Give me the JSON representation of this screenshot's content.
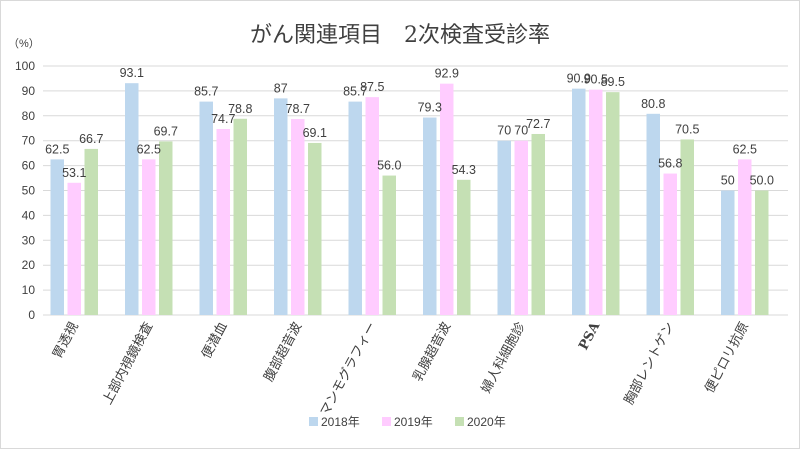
{
  "chart_data": {
    "type": "bar",
    "title": "がん関連項目　2次検査受診率",
    "ylabel": "（%）",
    "ylim": [
      0,
      100
    ],
    "yticks": [
      "0",
      "10",
      "20",
      "30",
      "40",
      "50",
      "60",
      "70",
      "80",
      "90",
      "100"
    ],
    "grid": true,
    "legend_position": "bottom",
    "categories": [
      "胃透視",
      "上部内視鏡検査",
      "便潜血",
      "腹部超音波",
      "マンモグラフィー",
      "乳腺超音波",
      "婦人科細胞診",
      "PSA",
      "胸部レントゲン",
      "便ピロリ抗原"
    ],
    "series": [
      {
        "name": "2018年",
        "color": "#bdd7ee",
        "values": [
          62.5,
          93.1,
          85.7,
          87,
          85.7,
          79.3,
          70,
          90.9,
          80.8,
          50
        ],
        "labels": [
          "62.5",
          "93.1",
          "85.7",
          "87",
          "85.7",
          "79.3",
          "70",
          "90.9",
          "80.8",
          "50"
        ]
      },
      {
        "name": "2019年",
        "color": "#ffccff",
        "values": [
          53.1,
          62.5,
          74.7,
          78.7,
          87.5,
          92.9,
          70,
          90.5,
          56.8,
          62.5
        ],
        "labels": [
          "53.1",
          "62.5",
          "74.7",
          "78.7",
          "87.5",
          "92.9",
          "70",
          "90.5",
          "56.8",
          "62.5"
        ]
      },
      {
        "name": "2020年",
        "color": "#c5e0b4",
        "values": [
          66.7,
          69.7,
          78.8,
          69.1,
          56.0,
          54.3,
          72.7,
          89.5,
          70.5,
          50.0
        ],
        "labels": [
          "66.7",
          "69.7",
          "78.8",
          "69.1",
          "56.0",
          "54.3",
          "72.7",
          "89.5",
          "70.5",
          "50.0"
        ]
      }
    ]
  }
}
